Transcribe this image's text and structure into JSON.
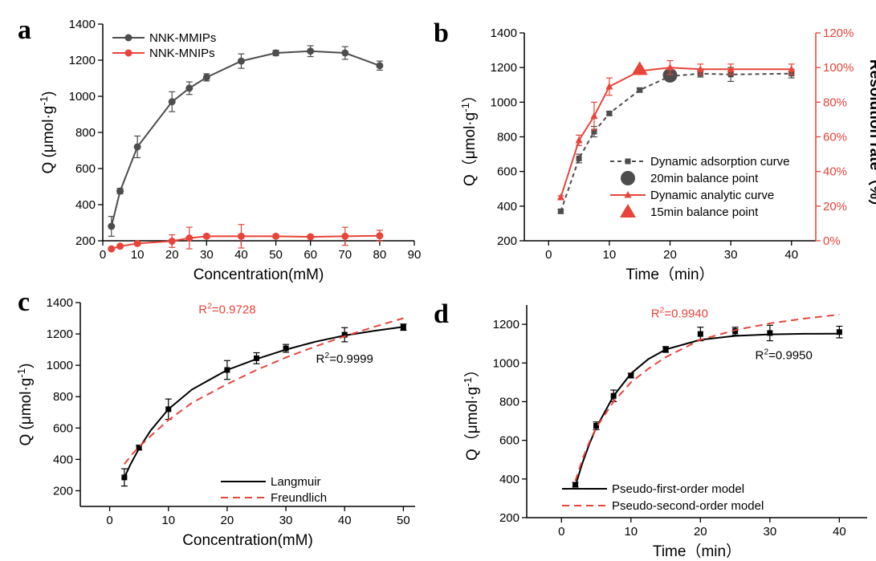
{
  "chart_data": [
    {
      "panel": "a",
      "type": "line",
      "xlabel": "Concentration(mM)",
      "ylabel": "Q (μmol·g",
      "ylabel_sup": "-1",
      "ylabel_tail": ")",
      "xlim": [
        0,
        90
      ],
      "ylim": [
        200,
        1400
      ],
      "xticks": [
        "0",
        "10",
        "20",
        "30",
        "40",
        "50",
        "60",
        "70",
        "80",
        "90"
      ],
      "yticks": [
        "200",
        "400",
        "600",
        "800",
        "1000",
        "1200",
        "1400"
      ],
      "legend_position": "top-left",
      "series": [
        {
          "name": "NNK-MMIPs",
          "color": "#4d4d4d",
          "marker": "circle",
          "line": "solid",
          "x": [
            2.5,
            5,
            10,
            20,
            25,
            30,
            40,
            50,
            60,
            70,
            80
          ],
          "y": [
            280,
            475,
            720,
            970,
            1045,
            1105,
            1195,
            1240,
            1250,
            1240,
            1170
          ],
          "err": [
            55,
            15,
            60,
            55,
            35,
            20,
            40,
            15,
            30,
            35,
            25
          ]
        },
        {
          "name": "NNK-MNIPs",
          "color": "#e8443a",
          "marker": "circle",
          "line": "solid",
          "x": [
            2.5,
            5,
            10,
            20,
            25,
            30,
            40,
            50,
            60,
            70,
            80
          ],
          "y": [
            155,
            170,
            185,
            198,
            215,
            225,
            225,
            225,
            222,
            225,
            228
          ],
          "err": [
            8,
            8,
            10,
            35,
            60,
            10,
            65,
            8,
            8,
            50,
            30
          ]
        }
      ]
    },
    {
      "panel": "b",
      "type": "line",
      "xlabel": "Time（min）",
      "ylabel": "Q（μmol·g",
      "ylabel_sup": "-1",
      "ylabel_tail": "）",
      "y2label": "Resolution rate（%）",
      "xlim": [
        -4,
        44
      ],
      "ylim": [
        200,
        1400
      ],
      "y2lim": [
        0,
        120
      ],
      "xticks": [
        "0",
        "10",
        "20",
        "30",
        "40"
      ],
      "xtick_values": [
        0,
        10,
        20,
        30,
        40
      ],
      "yticks": [
        "200",
        "400",
        "600",
        "800",
        "1000",
        "1200",
        "1400"
      ],
      "y2ticks": [
        "0%",
        "20%",
        "40%",
        "60%",
        "80%",
        "100%",
        "120%"
      ],
      "legend_position": "bottom-right",
      "series": [
        {
          "name": "Dynamic adsorption curve",
          "color": "#4d4d4d",
          "marker": "square",
          "line": "dashed",
          "axis": "left",
          "x": [
            2,
            5,
            7.5,
            10,
            15,
            20,
            25,
            30,
            40
          ],
          "y": [
            370,
            675,
            830,
            935,
            1070,
            1150,
            1165,
            1160,
            1165
          ],
          "err": [
            10,
            25,
            30,
            10,
            10,
            30,
            20,
            40,
            25
          ]
        },
        {
          "name": "20min balance point",
          "color": "#4d4d4d",
          "marker": "big-circle",
          "line": "none",
          "axis": "left",
          "x": [
            20
          ],
          "y": [
            1155
          ]
        },
        {
          "name": "Dynamic analytic curve",
          "color": "#e8443a",
          "marker": "triangle",
          "line": "solid",
          "axis": "right",
          "x": [
            2,
            5,
            7.5,
            10,
            15,
            20,
            25,
            30,
            40
          ],
          "y": [
            25,
            58,
            72,
            89,
            98,
            100,
            99,
            99,
            99
          ],
          "err": [
            1,
            3,
            8,
            5,
            2,
            4,
            3,
            3,
            3
          ]
        },
        {
          "name": "15min balance point",
          "color": "#e8443a",
          "marker": "big-triangle",
          "line": "none",
          "axis": "right",
          "x": [
            15
          ],
          "y": [
            99
          ]
        }
      ]
    },
    {
      "panel": "c",
      "type": "line",
      "xlabel": "Concentration(mM)",
      "ylabel": "Q (μmol·g",
      "ylabel_sup": "-1",
      "ylabel_tail": ")",
      "xlim": [
        -5,
        52
      ],
      "ylim": [
        100,
        1400
      ],
      "xticks": [
        "0",
        "10",
        "20",
        "30",
        "40",
        "50"
      ],
      "xtick_values": [
        0,
        10,
        20,
        30,
        40,
        50
      ],
      "yticks": [
        "200",
        "400",
        "600",
        "800",
        "1000",
        "1200",
        "1400"
      ],
      "ytick_values": [
        200,
        400,
        600,
        800,
        1000,
        1200,
        1400
      ],
      "legend_position": "bottom-right",
      "points": {
        "color": "#000000",
        "marker": "square",
        "x": [
          2.5,
          5,
          10,
          20,
          25,
          30,
          40,
          50
        ],
        "y": [
          285,
          475,
          720,
          970,
          1045,
          1108,
          1195,
          1243
        ],
        "err": [
          55,
          15,
          65,
          60,
          35,
          25,
          45,
          20
        ]
      },
      "series": [
        {
          "name": "Langmuir",
          "color": "#000000",
          "line": "solid",
          "x": [
            2.5,
            3.5,
            5,
            7,
            10,
            14,
            20,
            25,
            30,
            35,
            40,
            45,
            50
          ],
          "y": [
            285,
            365,
            470,
            585,
            720,
            845,
            970,
            1040,
            1100,
            1150,
            1190,
            1220,
            1245
          ]
        },
        {
          "name": "Freundlich",
          "color": "#e8443a",
          "line": "dashed",
          "x": [
            2.5,
            4,
            5,
            7,
            10,
            14,
            20,
            25,
            30,
            35,
            40,
            45,
            50
          ],
          "y": [
            370,
            440,
            480,
            550,
            650,
            760,
            880,
            970,
            1050,
            1120,
            1185,
            1245,
            1300
          ]
        }
      ],
      "annotations": [
        {
          "text": "R",
          "sup": "2",
          "tail": "=0.9728",
          "color": "#e8443a",
          "x": 20,
          "y": 1330
        },
        {
          "text": "R",
          "sup": "2",
          "tail": "=0.9999",
          "color": "#000000",
          "x": 40,
          "y": 1015
        }
      ]
    },
    {
      "panel": "d",
      "type": "line",
      "xlabel": "Time（min）",
      "ylabel": "Q（μmol·g",
      "ylabel_sup": "-1",
      "ylabel_tail": "）",
      "xlim": [
        -5,
        44
      ],
      "ylim": [
        200,
        1300
      ],
      "xticks": [
        "0",
        "10",
        "20",
        "30",
        "40"
      ],
      "xtick_values": [
        0,
        10,
        20,
        30,
        40
      ],
      "yticks": [
        "200",
        "400",
        "600",
        "800",
        "1000",
        "1200"
      ],
      "ytick_values": [
        200,
        400,
        600,
        800,
        1000,
        1200
      ],
      "legend_position": "bottom-right",
      "points": {
        "color": "#000000",
        "marker": "square",
        "x": [
          2,
          5,
          7.5,
          10,
          15,
          20,
          25,
          30,
          40
        ],
        "y": [
          370,
          675,
          830,
          935,
          1070,
          1150,
          1165,
          1155,
          1160
        ],
        "err": [
          12,
          20,
          30,
          12,
          15,
          35,
          20,
          40,
          30
        ]
      },
      "series": [
        {
          "name": "Pseudo-first-order model",
          "color": "#000000",
          "line": "solid",
          "x": [
            2,
            3,
            4,
            5,
            7.5,
            10,
            12.5,
            15,
            20,
            25,
            30,
            35,
            40
          ],
          "y": [
            365,
            480,
            580,
            665,
            830,
            945,
            1020,
            1070,
            1120,
            1140,
            1148,
            1151,
            1152
          ]
        },
        {
          "name": "Pseudo-second-order model",
          "color": "#e8443a",
          "line": "dashed",
          "x": [
            2,
            3,
            4,
            5,
            7.5,
            10,
            12.5,
            15,
            20,
            25,
            30,
            35,
            40
          ],
          "y": [
            390,
            500,
            590,
            665,
            800,
            900,
            970,
            1030,
            1120,
            1170,
            1205,
            1230,
            1250
          ]
        }
      ],
      "annotations": [
        {
          "text": "R",
          "sup": "2",
          "tail": "=0.9940",
          "color": "#e8443a",
          "x": 17,
          "y": 1235
        },
        {
          "text": "R",
          "sup": "2",
          "tail": "=0.9950",
          "color": "#000000",
          "x": 32,
          "y": 1020
        }
      ]
    }
  ]
}
